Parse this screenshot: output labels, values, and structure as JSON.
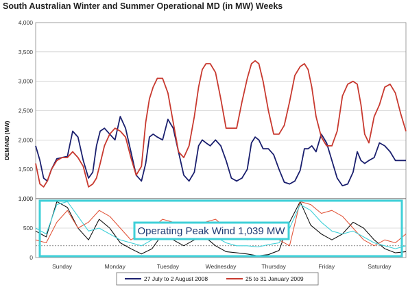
{
  "chart_data": [
    {
      "type": "line",
      "title": "South Australian Winter and Summer Operational MD (in MW) Weeks",
      "ylabel": "DEMAND (MW)",
      "ylim": [
        1000,
        4000
      ],
      "yticks": [
        "4,000",
        "3,500",
        "3,000",
        "2,500",
        "2,000",
        "1,500",
        "1,000"
      ],
      "grid": true,
      "legend_position": "bottom",
      "series": [
        {
          "name": "27 July to 2 August 2008",
          "color": "#1a1f6e",
          "x": [
            0,
            0.08,
            0.15,
            0.22,
            0.3,
            0.4,
            0.5,
            0.6,
            0.7,
            0.8,
            0.9,
            1.0,
            1.08,
            1.15,
            1.22,
            1.3,
            1.4,
            1.5,
            1.6,
            1.7,
            1.8,
            1.9,
            2.0,
            2.08,
            2.15,
            2.22,
            2.3,
            2.4,
            2.5,
            2.6,
            2.7,
            2.8,
            2.9,
            3.0,
            3.08,
            3.15,
            3.22,
            3.3,
            3.4,
            3.5,
            3.6,
            3.7,
            3.8,
            3.9,
            4.0,
            4.08,
            4.15,
            4.22,
            4.3,
            4.4,
            4.5,
            4.6,
            4.7,
            4.8,
            4.9,
            5.0,
            5.08,
            5.15,
            5.22,
            5.3,
            5.4,
            5.5,
            5.6,
            5.7,
            5.8,
            5.9,
            6.0,
            6.08,
            6.15,
            6.22,
            6.3,
            6.4,
            6.5,
            6.6,
            6.7,
            6.8,
            6.9,
            7.0
          ],
          "values": [
            1900,
            1650,
            1350,
            1300,
            1500,
            1680,
            1700,
            1720,
            2150,
            2050,
            1650,
            1350,
            1450,
            1900,
            2150,
            2200,
            2100,
            2000,
            2400,
            2200,
            1800,
            1400,
            1300,
            1600,
            2050,
            2100,
            2050,
            2000,
            2350,
            2200,
            1800,
            1400,
            1300,
            1450,
            1900,
            2000,
            1950,
            1900,
            2000,
            1900,
            1650,
            1350,
            1300,
            1350,
            1500,
            1950,
            2050,
            2000,
            1850,
            1850,
            1750,
            1500,
            1280,
            1250,
            1300,
            1480,
            1850,
            1850,
            1900,
            1800,
            2100,
            1950,
            1650,
            1350,
            1220,
            1250,
            1450,
            1800,
            1650,
            1600,
            1650,
            1700,
            1950,
            1900,
            1800,
            1650,
            1650,
            1650
          ]
        },
        {
          "name": "25 to 31 January 2009",
          "color": "#c8392f",
          "x": [
            0,
            0.08,
            0.15,
            0.22,
            0.3,
            0.4,
            0.5,
            0.6,
            0.7,
            0.8,
            0.9,
            1.0,
            1.08,
            1.15,
            1.22,
            1.3,
            1.4,
            1.5,
            1.6,
            1.7,
            1.8,
            1.9,
            2.0,
            2.08,
            2.15,
            2.22,
            2.3,
            2.4,
            2.5,
            2.6,
            2.7,
            2.8,
            2.9,
            3.0,
            3.08,
            3.15,
            3.22,
            3.3,
            3.4,
            3.5,
            3.6,
            3.7,
            3.8,
            3.9,
            4.0,
            4.08,
            4.15,
            4.22,
            4.3,
            4.4,
            4.5,
            4.6,
            4.7,
            4.8,
            4.9,
            5.0,
            5.08,
            5.15,
            5.22,
            5.3,
            5.4,
            5.5,
            5.6,
            5.7,
            5.8,
            5.9,
            6.0,
            6.08,
            6.15,
            6.22,
            6.3,
            6.4,
            6.5,
            6.6,
            6.7,
            6.8,
            6.9,
            7.0
          ],
          "values": [
            1600,
            1250,
            1200,
            1300,
            1500,
            1650,
            1700,
            1700,
            1800,
            1700,
            1550,
            1200,
            1250,
            1350,
            1600,
            1900,
            2100,
            2200,
            2150,
            2050,
            1700,
            1400,
            1550,
            2300,
            2700,
            2900,
            3050,
            3050,
            2800,
            2300,
            1800,
            1700,
            1900,
            2400,
            2900,
            3200,
            3300,
            3300,
            3150,
            2700,
            2200,
            2200,
            2200,
            2650,
            3050,
            3300,
            3350,
            3300,
            3000,
            2500,
            2100,
            2100,
            2250,
            2650,
            3100,
            3250,
            3300,
            3200,
            2900,
            2400,
            2050,
            1900,
            1900,
            2150,
            2750,
            2950,
            3000,
            2950,
            2600,
            2100,
            1950,
            2400,
            2600,
            2900,
            2950,
            2800,
            2450,
            2150
          ]
        }
      ],
      "legend": [
        "27 July to 2 August 2008",
        "25 to 31 January 2009"
      ]
    },
    {
      "type": "line",
      "ylim": [
        0,
        1000
      ],
      "yticks": [
        "1,000",
        "500",
        "0"
      ],
      "categories": [
        "Sunday",
        "Monday",
        "Tuesday",
        "Wednesday",
        "Thursday",
        "Friday",
        "Saturday"
      ],
      "annotation": "Operating Peak Wind 1,039 MW",
      "reference_line": 200,
      "series": [
        {
          "color": "#111111",
          "x": [
            0,
            0.2,
            0.4,
            0.6,
            0.8,
            1.0,
            1.2,
            1.4,
            1.6,
            1.8,
            2.0,
            2.2,
            2.4,
            2.6,
            2.8,
            3.0,
            3.2,
            3.4,
            3.6,
            3.8,
            4.0,
            4.2,
            4.4,
            4.6,
            4.8,
            5.0,
            5.2,
            5.4,
            5.6,
            5.8,
            6.0,
            6.2,
            6.4,
            6.6,
            6.8,
            7.0
          ],
          "values": [
            450,
            350,
            950,
            850,
            500,
            300,
            650,
            500,
            250,
            150,
            60,
            150,
            400,
            300,
            200,
            300,
            350,
            200,
            100,
            80,
            60,
            30,
            50,
            120,
            600,
            950,
            550,
            400,
            300,
            400,
            600,
            500,
            300,
            150,
            80,
            100
          ]
        },
        {
          "color": "#e2553a",
          "x": [
            0,
            0.2,
            0.4,
            0.6,
            0.8,
            1.0,
            1.2,
            1.4,
            1.6,
            1.8,
            2.0,
            2.2,
            2.4,
            2.6,
            2.8,
            3.0,
            3.2,
            3.4,
            3.6,
            3.8,
            4.0,
            4.2,
            4.4,
            4.6,
            4.8,
            5.0,
            5.2,
            5.4,
            5.6,
            5.8,
            6.0,
            6.2,
            6.4,
            6.6,
            6.8,
            7.0
          ],
          "values": [
            300,
            250,
            600,
            800,
            500,
            600,
            800,
            700,
            500,
            300,
            400,
            500,
            650,
            600,
            550,
            500,
            600,
            650,
            500,
            400,
            300,
            350,
            400,
            300,
            200,
            950,
            900,
            750,
            800,
            700,
            500,
            300,
            200,
            300,
            250,
            400
          ]
        },
        {
          "color": "#3fd0d8",
          "x": [
            0,
            0.2,
            0.4,
            0.6,
            0.8,
            1.0,
            1.2,
            1.4,
            1.6,
            1.8,
            2.0,
            2.2,
            2.4,
            2.6,
            2.8,
            3.0,
            3.2,
            3.4,
            3.6,
            3.8,
            4.0,
            4.2,
            4.4,
            4.6,
            4.8,
            5.0,
            5.2,
            5.4,
            5.6,
            5.8,
            6.0,
            6.2,
            6.4,
            6.6,
            6.8,
            7.0
          ],
          "values": [
            500,
            400,
            900,
            950,
            700,
            450,
            500,
            400,
            300,
            250,
            200,
            300,
            500,
            400,
            350,
            400,
            450,
            350,
            250,
            200,
            200,
            180,
            220,
            250,
            500,
            900,
            800,
            600,
            450,
            400,
            450,
            350,
            250,
            200,
            150,
            200
          ]
        }
      ]
    }
  ]
}
